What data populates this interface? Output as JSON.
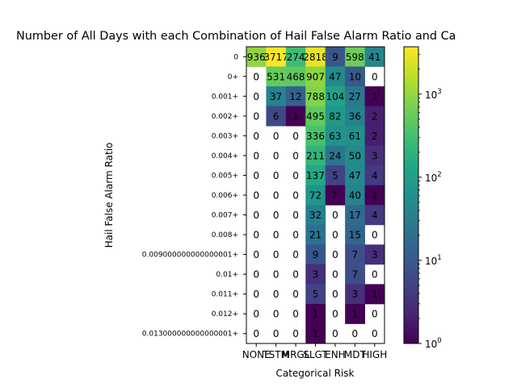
{
  "chart_data": {
    "type": "heatmap",
    "title": "Number of All Days with each Combination of Hail False Alarm Ratio and Ca",
    "xlabel": "Categorical Risk",
    "ylabel": "Hail False Alarm Ratio",
    "x_categories": [
      "NONE",
      "TSTM",
      "MRGL",
      "SLGT",
      "ENH",
      "MDT",
      "HIGH"
    ],
    "y_categories": [
      "0",
      "0+",
      "0.001+",
      "0.002+",
      "0.003+",
      "0.004+",
      "0.005+",
      "0.006+",
      "0.007+",
      "0.008+",
      "0.009000000000000001+",
      "0.01+",
      "0.011+",
      "0.012+",
      "0.013000000000000001+"
    ],
    "values": [
      [
        936,
        3717,
        274,
        2818,
        9,
        598,
        41
      ],
      [
        0,
        531,
        468,
        907,
        47,
        10,
        0
      ],
      [
        0,
        37,
        12,
        788,
        104,
        27,
        1
      ],
      [
        0,
        6,
        1,
        495,
        82,
        36,
        2
      ],
      [
        0,
        0,
        0,
        336,
        63,
        61,
        2
      ],
      [
        0,
        0,
        0,
        211,
        24,
        50,
        3
      ],
      [
        0,
        0,
        0,
        137,
        5,
        47,
        4
      ],
      [
        0,
        0,
        0,
        72,
        1,
        40,
        1
      ],
      [
        0,
        0,
        0,
        32,
        0,
        17,
        4
      ],
      [
        0,
        0,
        0,
        21,
        0,
        15,
        0
      ],
      [
        0,
        0,
        0,
        9,
        0,
        7,
        3
      ],
      [
        0,
        0,
        0,
        3,
        0,
        7,
        0
      ],
      [
        0,
        0,
        0,
        5,
        0,
        3,
        1
      ],
      [
        0,
        0,
        0,
        1,
        0,
        1,
        0
      ],
      [
        0,
        0,
        0,
        1,
        0,
        0,
        0
      ]
    ],
    "color_scale": "log",
    "colormap": "viridis",
    "vmin": 1,
    "vmax": 3717,
    "colorbar_ticks": [
      {
        "value": 1,
        "base": "10",
        "exp": "0"
      },
      {
        "value": 10,
        "base": "10",
        "exp": "1"
      },
      {
        "value": 100,
        "base": "10",
        "exp": "2"
      },
      {
        "value": 1000,
        "base": "10",
        "exp": "3"
      }
    ],
    "grid": false
  }
}
